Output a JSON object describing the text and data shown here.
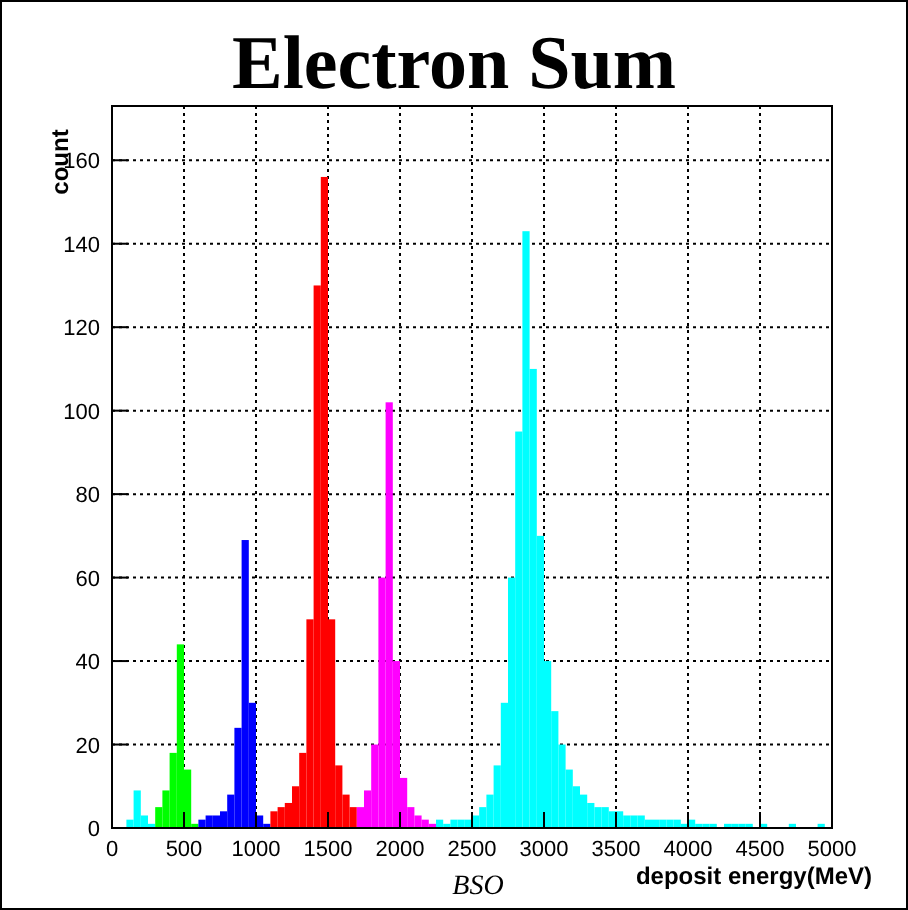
{
  "chart_data": {
    "type": "histogram",
    "title": "Electron Sum",
    "xlabel": "deposit energy(MeV)",
    "ylabel": "count",
    "annotations": [
      "BSO"
    ],
    "xlim": [
      0,
      5000
    ],
    "xticks": [
      0,
      500,
      1000,
      1500,
      2000,
      2500,
      3000,
      3500,
      4000,
      4500,
      5000
    ],
    "ylim": [
      0,
      173
    ],
    "yticks": [
      0,
      20,
      40,
      60,
      80,
      100,
      120,
      140,
      160
    ],
    "grid": true,
    "bins": [
      0,
      50,
      100,
      150,
      200,
      250,
      300,
      350,
      400,
      450,
      500,
      550,
      600,
      650,
      700,
      750,
      800,
      850,
      900,
      950,
      1000,
      1050,
      1100,
      1150,
      1200,
      1250,
      1300,
      1350,
      1400,
      1450,
      1500,
      1550,
      1600,
      1650,
      1700,
      1750,
      1800,
      1850,
      1900,
      1950,
      2000,
      2050,
      2100,
      2150,
      2200,
      2250,
      2300,
      2350,
      2400,
      2450,
      2500,
      2550,
      2600,
      2650,
      2700,
      2750,
      2800,
      2850,
      2900,
      2950,
      3000,
      3050,
      3100,
      3150,
      3200,
      3250,
      3300,
      3350,
      3400,
      3450,
      3500,
      3550,
      3600,
      3650,
      3700,
      3750,
      3800,
      3850,
      3900,
      3950,
      4000,
      4050,
      4100,
      4150,
      4200,
      4250,
      4300,
      4350,
      4400,
      4450,
      4500,
      4550,
      4600,
      4650,
      4700,
      4750,
      4800,
      4850,
      4900,
      4950,
      5000
    ],
    "series": [
      {
        "color": "#00ffff",
        "values": [
          null,
          null,
          2,
          9,
          3,
          1,
          null,
          null,
          null,
          null,
          null,
          null,
          null,
          null,
          null,
          null,
          null,
          null,
          null,
          null,
          null,
          null,
          null,
          null,
          null,
          null,
          null,
          null,
          null,
          null,
          null,
          null,
          null,
          null,
          null,
          null,
          null,
          null,
          null,
          null,
          null,
          null,
          null,
          null,
          null,
          2,
          1,
          2,
          2,
          2,
          3,
          5,
          8,
          15,
          30,
          60,
          95,
          143,
          110,
          70,
          40,
          28,
          20,
          14,
          10,
          8,
          6,
          5,
          5,
          4,
          4,
          3,
          3,
          3,
          2,
          2,
          2,
          2,
          2,
          1,
          2,
          1,
          1,
          1,
          null,
          1,
          1,
          1,
          1,
          null,
          1,
          null,
          null,
          null,
          1,
          null,
          null,
          null,
          1,
          null
        ]
      },
      {
        "color": "#00ff00",
        "values": [
          null,
          null,
          null,
          null,
          null,
          null,
          5,
          9,
          18,
          44,
          14,
          1,
          null,
          null,
          null,
          null,
          null,
          null,
          null,
          null,
          null,
          null,
          null,
          null,
          null,
          null,
          null,
          null,
          null,
          null,
          null,
          null,
          null,
          null,
          null,
          null,
          null,
          null,
          null,
          null,
          null,
          null,
          null,
          null,
          null,
          null,
          null,
          null,
          null,
          null,
          null,
          null,
          null,
          null,
          null,
          null,
          null,
          null,
          null,
          null,
          null,
          null,
          null,
          null,
          null,
          null,
          null,
          null,
          null,
          null,
          null,
          null,
          null,
          null,
          null,
          null,
          null,
          null,
          null,
          null,
          null,
          null,
          null,
          null,
          null,
          null,
          null,
          null,
          null,
          null,
          null,
          null,
          null,
          null,
          null,
          null,
          null,
          null,
          null,
          null
        ]
      },
      {
        "color": "#0000ff",
        "values": [
          null,
          null,
          null,
          null,
          null,
          null,
          null,
          null,
          null,
          null,
          null,
          null,
          2,
          3,
          3,
          4,
          8,
          24,
          69,
          30,
          3,
          1,
          null,
          null,
          null,
          null,
          null,
          null,
          null,
          null,
          null,
          null,
          null,
          null,
          null,
          null,
          null,
          null,
          null,
          null,
          null,
          null,
          null,
          null,
          null,
          null,
          null,
          null,
          null,
          null,
          null,
          null,
          null,
          null,
          null,
          null,
          null,
          null,
          null,
          null,
          null,
          null,
          null,
          null,
          null,
          null,
          null,
          null,
          null,
          null,
          null,
          null,
          null,
          null,
          null,
          null,
          null,
          null,
          null,
          null,
          null,
          null,
          null,
          null,
          null,
          null,
          null,
          null,
          null,
          null,
          null,
          null,
          null,
          null,
          null,
          null,
          null,
          null,
          null,
          null
        ]
      },
      {
        "color": "#ff0000",
        "values": [
          null,
          null,
          null,
          null,
          null,
          null,
          null,
          null,
          null,
          null,
          null,
          null,
          null,
          null,
          null,
          null,
          null,
          null,
          null,
          null,
          null,
          null,
          4,
          5,
          6,
          10,
          18,
          50,
          130,
          156,
          50,
          15,
          8,
          5,
          null,
          null,
          null,
          null,
          null,
          null,
          null,
          null,
          null,
          null,
          null,
          null,
          null,
          null,
          null,
          null,
          null,
          null,
          null,
          null,
          null,
          null,
          null,
          null,
          null,
          null,
          null,
          null,
          null,
          null,
          null,
          null,
          null,
          null,
          null,
          null,
          null,
          null,
          null,
          null,
          null,
          null,
          null,
          null,
          null,
          null,
          null,
          null,
          null,
          null,
          null,
          null,
          null,
          null,
          null,
          null,
          null,
          null,
          null,
          null,
          null,
          null,
          null,
          null,
          null,
          null
        ]
      },
      {
        "color": "#ff00ff",
        "values": [
          null,
          null,
          null,
          null,
          null,
          null,
          null,
          null,
          null,
          null,
          null,
          null,
          null,
          null,
          null,
          null,
          null,
          null,
          null,
          null,
          null,
          null,
          null,
          null,
          null,
          null,
          null,
          null,
          null,
          null,
          null,
          null,
          null,
          null,
          5,
          9,
          20,
          60,
          102,
          40,
          12,
          5,
          3,
          2,
          1,
          null,
          null,
          null,
          null,
          null,
          null,
          null,
          null,
          null,
          null,
          null,
          null,
          null,
          null,
          null,
          null,
          null,
          null,
          null,
          null,
          null,
          null,
          null,
          null,
          null,
          null,
          null,
          null,
          null,
          null,
          null,
          null,
          null,
          null,
          null,
          null,
          null,
          null,
          null,
          null,
          null,
          null,
          null,
          null,
          null,
          null,
          null,
          null,
          null,
          null,
          null,
          null,
          null,
          null,
          null
        ]
      }
    ]
  }
}
